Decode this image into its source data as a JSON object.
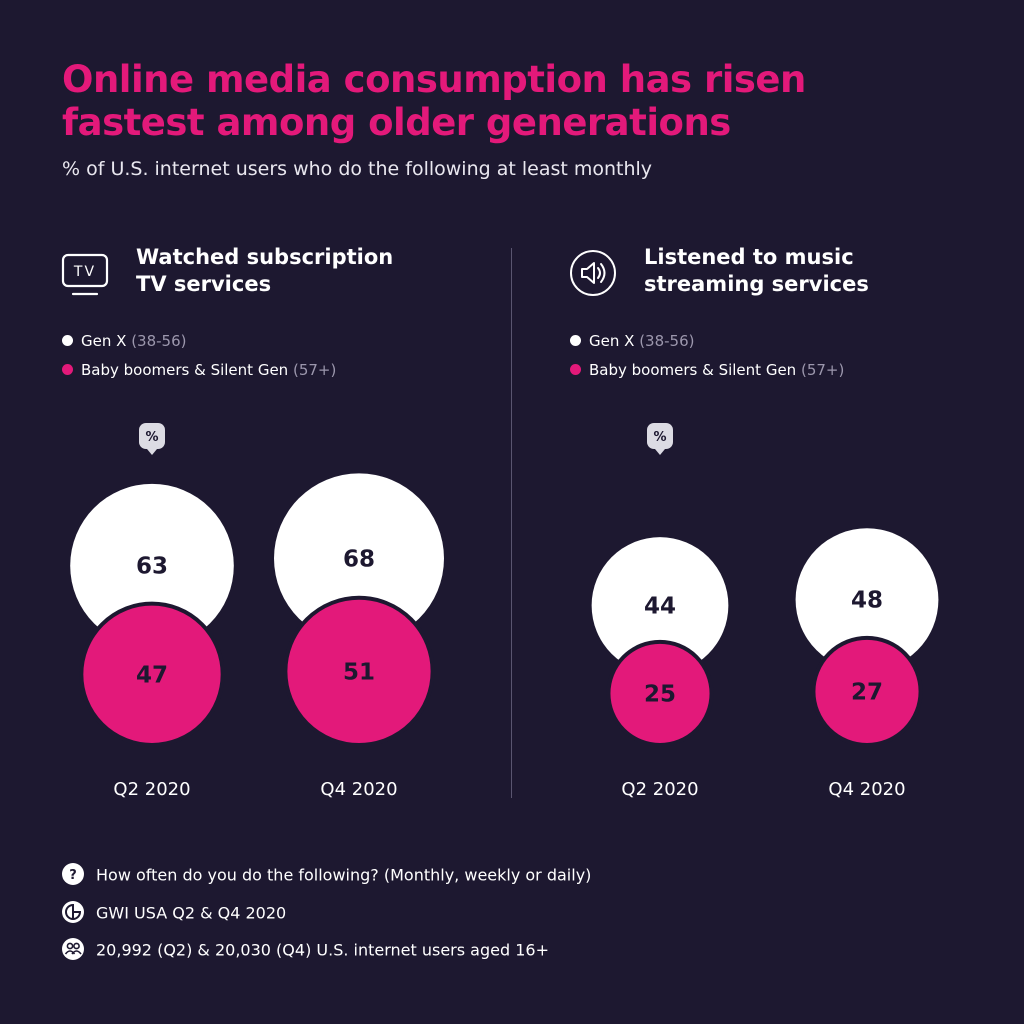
{
  "title_line1": "Online media consumption has risen",
  "title_line2": "fastest among older generations",
  "subtitle": "% of U.S. internet users who do the following at least monthly",
  "colors": {
    "background": "#1d1830",
    "gen_x": "#ffffff",
    "boomers": "#e3197a",
    "accent": "#e3197a"
  },
  "pct_marker_label": "%",
  "panels": [
    {
      "title_line1": "Watched subscription",
      "title_line2": "TV services",
      "icon": "tv-icon",
      "icon_text": "TV",
      "legend": [
        {
          "label": "Gen X",
          "range": "(38-56)"
        },
        {
          "label": "Baby boomers & Silent Gen",
          "range": "(57+)"
        }
      ]
    },
    {
      "title_line1": "Listened to music",
      "title_line2": "streaming services",
      "icon": "speaker-icon",
      "legend": [
        {
          "label": "Gen X",
          "range": "(38-56)"
        },
        {
          "label": "Baby boomers & Silent Gen",
          "range": "(57+)"
        }
      ]
    }
  ],
  "chart_data": [
    {
      "type": "bubble",
      "title": "Watched subscription TV services",
      "categories": [
        "Q2 2020",
        "Q4 2020"
      ],
      "series": [
        {
          "name": "Gen X (38-56)",
          "values": [
            63,
            68
          ]
        },
        {
          "name": "Baby boomers & Silent Gen (57+)",
          "values": [
            47,
            51
          ]
        }
      ]
    },
    {
      "type": "bubble",
      "title": "Listened to music streaming services",
      "categories": [
        "Q2 2020",
        "Q4 2020"
      ],
      "series": [
        {
          "name": "Gen X (38-56)",
          "values": [
            44,
            48
          ]
        },
        {
          "name": "Baby boomers & Silent Gen (57+)",
          "values": [
            25,
            27
          ]
        }
      ]
    }
  ],
  "footer": {
    "question": "How often do you do the following? (Monthly, weekly or daily)",
    "source": "GWI USA Q2 & Q4 2020",
    "base": "20,992 (Q2) & 20,030 (Q4) U.S. internet users aged 16+"
  }
}
